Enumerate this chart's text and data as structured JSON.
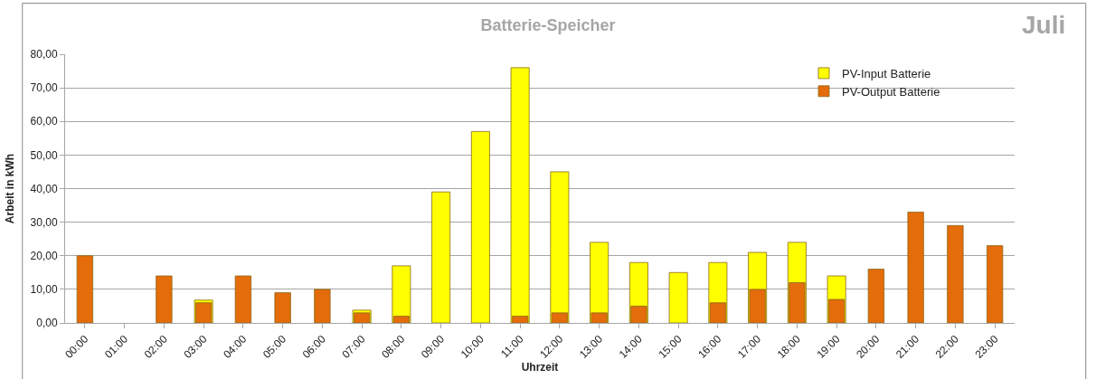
{
  "chart_data": {
    "type": "bar",
    "title": "Batterie-Speicher",
    "xlabel": "Uhrzeit",
    "ylabel": "Arbeit in kWh",
    "annotations": [
      "Juli"
    ],
    "categories": [
      "00:00",
      "01:00",
      "02:00",
      "03:00",
      "04:00",
      "05:00",
      "06:00",
      "07:00",
      "08:00",
      "09:00",
      "10:00",
      "11:00",
      "12:00",
      "13:00",
      "14:00",
      "15:00",
      "16:00",
      "17:00",
      "18:00",
      "19:00",
      "20:00",
      "21:00",
      "22:00",
      "23:00"
    ],
    "series": [
      {
        "name": "PV-Input Batterie",
        "color": "#ffff00",
        "values": [
          null,
          null,
          null,
          6.8,
          null,
          null,
          null,
          3.8,
          17,
          39,
          57,
          76,
          45,
          24,
          18,
          15,
          18,
          21,
          24,
          14,
          null,
          null,
          null,
          null
        ]
      },
      {
        "name": "PV-Output Batterie",
        "color": "#e46c0a",
        "values": [
          20,
          null,
          14,
          6,
          14,
          9,
          10,
          3,
          2,
          null,
          null,
          2,
          3,
          3,
          5,
          null,
          6,
          10,
          12,
          7,
          16,
          33,
          29,
          23
        ]
      }
    ],
    "stacked": false,
    "ylim": [
      0,
      80
    ],
    "yticks": [
      {
        "value": 0,
        "label": "0,00"
      },
      {
        "value": 10,
        "label": "10,00"
      },
      {
        "value": 20,
        "label": "20,00"
      },
      {
        "value": 30,
        "label": "30,00"
      },
      {
        "value": 40,
        "label": "40,00"
      },
      {
        "value": 50,
        "label": "50,00"
      },
      {
        "value": 60,
        "label": "60,00"
      },
      {
        "value": 70,
        "label": "70,00"
      },
      {
        "value": 80,
        "label": "80,00"
      }
    ],
    "grid": "y",
    "legend": "top right"
  }
}
